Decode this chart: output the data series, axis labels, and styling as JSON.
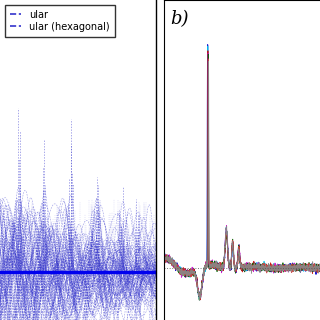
{
  "panel_b_label": "b)",
  "legend_entries": [
    "ular",
    "ular (hexagonal)"
  ],
  "background_color": "#ffffff",
  "dashed_line_color": "#3333cc",
  "solid_line_color": "#0000ee",
  "colors_right": [
    "#0000cc",
    "#00ccee",
    "#cc0000",
    "#cc00cc",
    "#006600",
    "#cc4444",
    "#888888"
  ],
  "dotted_ref_color": "#555555",
  "figsize": [
    3.2,
    3.2
  ],
  "dpi": 100
}
